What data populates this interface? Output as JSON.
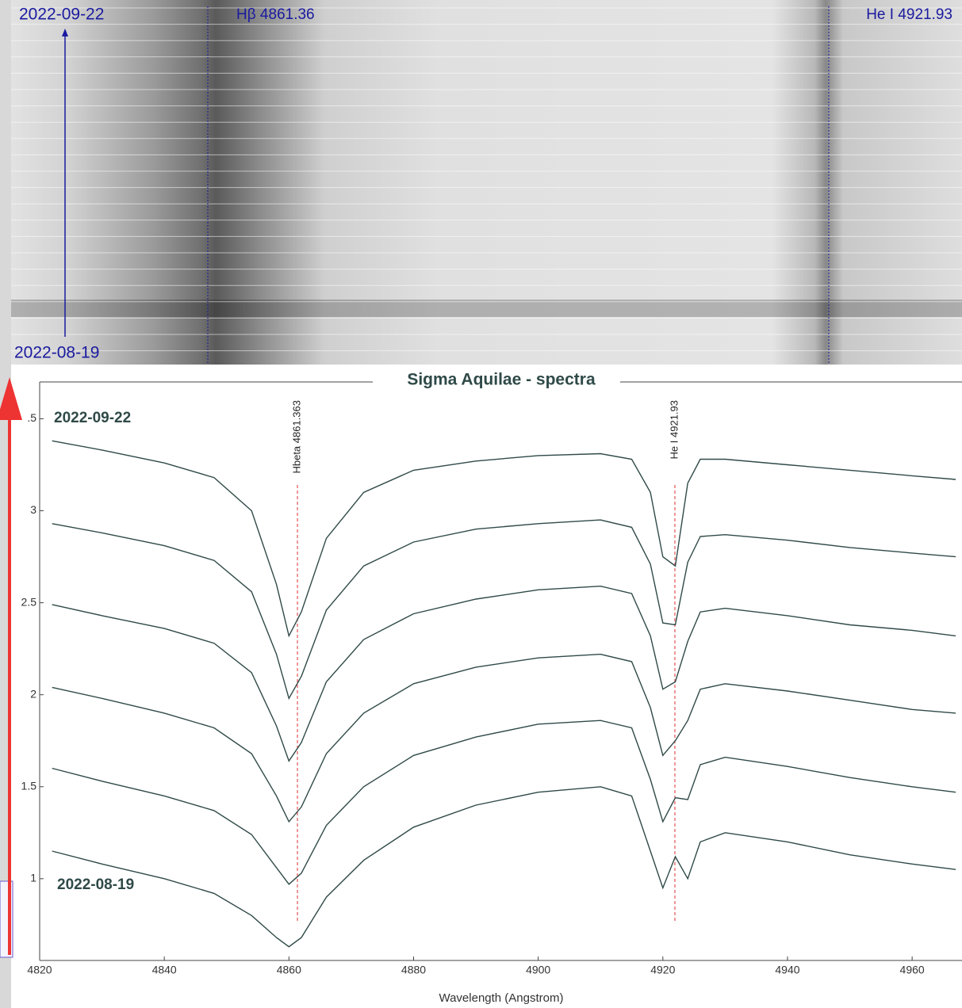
{
  "spectrum_image": {
    "date_top": "2022-09-22",
    "date_bottom": "2022-08-19",
    "lines": [
      {
        "label": "Hβ 4861.36"
      },
      {
        "label": "He I 4921.93"
      }
    ]
  },
  "chart_data": {
    "type": "line",
    "title": "Sigma Aquilae - spectra",
    "x_label": "Wavelength (Angstrom)",
    "date_labels": {
      "top": "2022-09-22",
      "bottom": "2022-08-19"
    },
    "annotations": [
      {
        "text": "Hbeta 4861.363",
        "x": 4861.363
      },
      {
        "text": "He I 4921.93",
        "x": 4921.93
      }
    ],
    "x": [
      4822,
      4830,
      4840,
      4848,
      4854,
      4858,
      4860,
      4862,
      4866,
      4872,
      4880,
      4890,
      4900,
      4910,
      4915,
      4918,
      4920,
      4922,
      4924,
      4926,
      4930,
      4940,
      4950,
      4960,
      4967
    ],
    "series": [
      {
        "color": "#2f4a48",
        "values": [
          3.38,
          3.33,
          3.26,
          3.18,
          3.0,
          2.6,
          2.32,
          2.45,
          2.85,
          3.1,
          3.22,
          3.27,
          3.3,
          3.31,
          3.28,
          3.1,
          2.75,
          2.7,
          3.15,
          3.28,
          3.28,
          3.25,
          3.22,
          3.19,
          3.17
        ]
      },
      {
        "color": "#2f4a48",
        "values": [
          2.93,
          2.88,
          2.81,
          2.73,
          2.56,
          2.22,
          1.98,
          2.1,
          2.46,
          2.7,
          2.83,
          2.9,
          2.93,
          2.95,
          2.91,
          2.71,
          2.39,
          2.38,
          2.72,
          2.86,
          2.87,
          2.84,
          2.8,
          2.77,
          2.75
        ]
      },
      {
        "color": "#2f4a48",
        "values": [
          2.49,
          2.43,
          2.36,
          2.28,
          2.12,
          1.83,
          1.64,
          1.74,
          2.07,
          2.3,
          2.44,
          2.52,
          2.57,
          2.59,
          2.55,
          2.32,
          2.03,
          2.07,
          2.29,
          2.45,
          2.47,
          2.43,
          2.38,
          2.35,
          2.32
        ]
      },
      {
        "color": "#2f4a48",
        "values": [
          2.04,
          1.98,
          1.9,
          1.82,
          1.68,
          1.45,
          1.31,
          1.39,
          1.68,
          1.9,
          2.06,
          2.15,
          2.2,
          2.22,
          2.18,
          1.93,
          1.67,
          1.75,
          1.86,
          2.03,
          2.06,
          2.02,
          1.97,
          1.92,
          1.9
        ]
      },
      {
        "color": "#2f4a48",
        "values": [
          1.6,
          1.53,
          1.45,
          1.37,
          1.24,
          1.06,
          0.97,
          1.03,
          1.29,
          1.5,
          1.67,
          1.77,
          1.84,
          1.86,
          1.82,
          1.54,
          1.31,
          1.44,
          1.43,
          1.62,
          1.66,
          1.61,
          1.55,
          1.5,
          1.47
        ]
      },
      {
        "color": "#2f4a48",
        "values": [
          1.15,
          1.08,
          1.0,
          0.92,
          0.8,
          0.68,
          0.63,
          0.68,
          0.9,
          1.1,
          1.28,
          1.4,
          1.47,
          1.5,
          1.45,
          1.15,
          0.95,
          1.12,
          1.0,
          1.2,
          1.25,
          1.2,
          1.13,
          1.08,
          1.05
        ]
      }
    ],
    "xlim": [
      4820,
      4968
    ],
    "xticks": [
      4820,
      4840,
      4860,
      4880,
      4900,
      4920,
      4940,
      4960
    ],
    "ylim": [
      0.56,
      3.7
    ],
    "yticks": [
      1,
      1.5,
      2,
      2.5,
      3,
      {
        "value": 3.5,
        "label": ".5"
      }
    ],
    "annotation_color": "#e03030"
  }
}
